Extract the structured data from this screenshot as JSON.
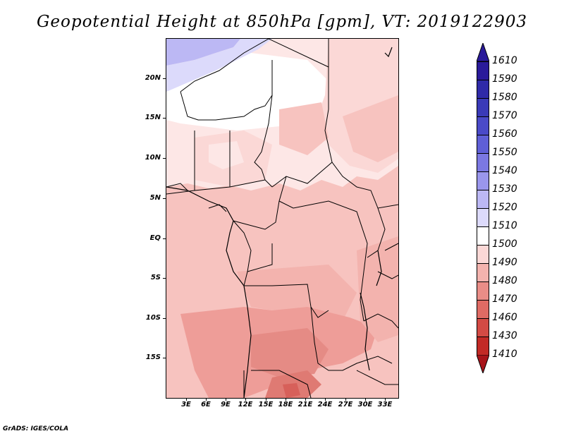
{
  "title": "Geopotential Height at 850hPa [gpm], VT: 2019122903",
  "credit": "GrADS: IGES/COLA",
  "y_axis": {
    "labels": [
      "20N",
      "15N",
      "10N",
      "5N",
      "EQ",
      "5S",
      "10S",
      "15S"
    ]
  },
  "x_axis": {
    "labels": [
      "3E",
      "6E",
      "9E",
      "12E",
      "15E",
      "18E",
      "21E",
      "24E",
      "27E",
      "30E",
      "33E"
    ]
  },
  "colorbar": {
    "levels": [
      "1610",
      "1590",
      "1580",
      "1570",
      "1560",
      "1550",
      "1540",
      "1530",
      "1520",
      "1510",
      "1500",
      "1490",
      "1480",
      "1470",
      "1460",
      "1430",
      "1410"
    ],
    "colors": [
      "#2a1a9a",
      "#2f2aa8",
      "#3a3ab8",
      "#4a4ac8",
      "#5f5fd6",
      "#7b78e2",
      "#9a96ec",
      "#bcb8f4",
      "#dcdafb",
      "#ffffff",
      "#fbd8d6",
      "#f3b3ae",
      "#e98d87",
      "#df6b64",
      "#d34a44",
      "#c22a26",
      "#a8141a"
    ]
  },
  "regions": [
    {
      "name": "high-1530",
      "color": "#bcb8f4"
    },
    {
      "name": "high-1520",
      "color": "#dcdafb"
    },
    {
      "name": "band-1510",
      "color": "#ffffff"
    },
    {
      "name": "band-1500",
      "color": "#fbd8d6"
    },
    {
      "name": "band-1490",
      "color": "#f3b3ae"
    },
    {
      "name": "band-1480",
      "color": "#e98d87"
    },
    {
      "name": "band-1470",
      "color": "#df6b64"
    }
  ]
}
